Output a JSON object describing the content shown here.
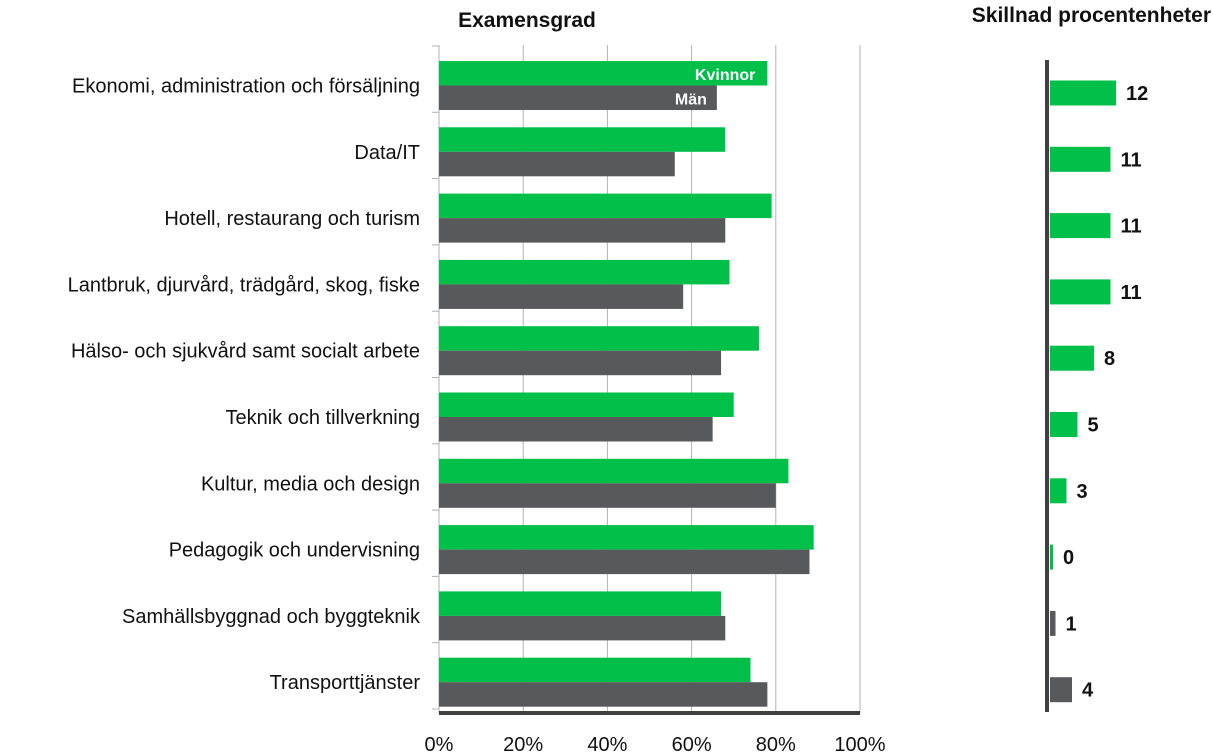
{
  "colors": {
    "women": "#00c04a",
    "men": "#58595b",
    "grid": "#b3b3b3",
    "axis": "#404040"
  },
  "chart_data": [
    {
      "type": "bar",
      "orientation": "horizontal",
      "title": "Examensgrad",
      "categories": [
        "Ekonomi, administration och försäljning",
        "Data/IT",
        "Hotell, restaurang och turism",
        "Lantbruk, djurvård, trädgård, skog, fiske",
        "Hälso- och sjukvård samt socialt arbete",
        "Teknik och tillverkning",
        "Kultur, media och design",
        "Pedagogik och undervisning",
        "Samhällsbyggnad och byggteknik",
        "Transporttjänster"
      ],
      "series": [
        {
          "name": "Kvinnor",
          "values": [
            78,
            68,
            79,
            69,
            76,
            70,
            83,
            89,
            67,
            74
          ]
        },
        {
          "name": "Män",
          "values": [
            66,
            56,
            68,
            58,
            67,
            65,
            80,
            88,
            68,
            78
          ]
        }
      ],
      "xlim": [
        0,
        100
      ],
      "x_ticks": [
        "0%",
        "20%",
        "40%",
        "60%",
        "80%",
        "100%"
      ],
      "grid": true,
      "legend": "inside-first-bars"
    },
    {
      "type": "bar",
      "orientation": "horizontal",
      "title": "Skillnad procentenheter",
      "categories": [
        "Ekonomi, administration och försäljning",
        "Data/IT",
        "Hotell, restaurang och turism",
        "Lantbruk, djurvård, trädgård, skog, fiske",
        "Hälso- och sjukvård samt socialt arbete",
        "Teknik och tillverkning",
        "Kultur, media och design",
        "Pedagogik och undervisning",
        "Samhällsbyggnad och byggteknik",
        "Transporttjänster"
      ],
      "values": [
        12,
        11,
        11,
        11,
        8,
        5,
        3,
        0,
        1,
        4
      ],
      "labels": [
        "12",
        "11",
        "11",
        "11",
        "8",
        "5",
        "3",
        "0",
        "1",
        "4"
      ],
      "higher_group": [
        "Kvinnor",
        "Kvinnor",
        "Kvinnor",
        "Kvinnor",
        "Kvinnor",
        "Kvinnor",
        "Kvinnor",
        "Kvinnor",
        "Män",
        "Män"
      ]
    }
  ]
}
